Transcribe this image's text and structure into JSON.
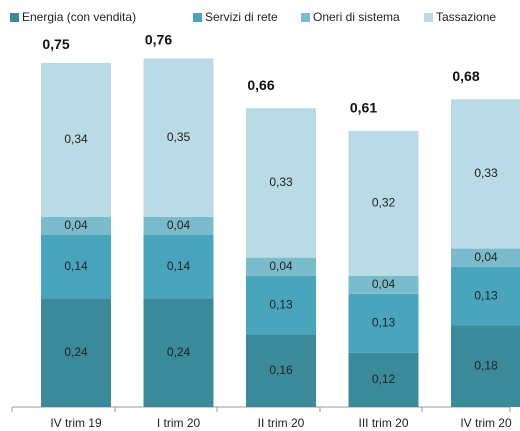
{
  "chart_data": {
    "type": "stacked_bar",
    "categories": [
      "IV trim 19",
      "I trim 20",
      "II trim 20",
      "III trim 20",
      "IV trim 20"
    ],
    "series": [
      {
        "name": "Energia (con vendita)",
        "color": "#3a8a99",
        "values": [
          0.24,
          0.24,
          0.16,
          0.12,
          0.18
        ],
        "value_labels": [
          "0,24",
          "0,24",
          "0,16",
          "0,12",
          "0,18"
        ]
      },
      {
        "name": "Servizi di rete",
        "color": "#49a5bb",
        "values": [
          0.14,
          0.14,
          0.13,
          0.13,
          0.13
        ],
        "value_labels": [
          "0,14",
          "0,14",
          "0,13",
          "0,13",
          "0,13"
        ]
      },
      {
        "name": "Oneri di sistema",
        "color": "#7bbccc",
        "values": [
          0.04,
          0.04,
          0.04,
          0.04,
          0.04
        ],
        "value_labels": [
          "0,04",
          "0,04",
          "0,04",
          "0,04",
          "0,04"
        ]
      },
      {
        "name": "Tassazione",
        "color": "#b8dbe5",
        "values": [
          0.34,
          0.35,
          0.33,
          0.32,
          0.33
        ],
        "value_labels": [
          "0,34",
          "0,35",
          "0,33",
          "0,32",
          "0,33"
        ]
      }
    ],
    "totals": {
      "values": [
        0.75,
        0.76,
        0.66,
        0.61,
        0.68
      ],
      "value_labels": [
        "0,75",
        "0,76",
        "0,66",
        "0,61",
        "0,68"
      ]
    },
    "legend": "top"
  }
}
